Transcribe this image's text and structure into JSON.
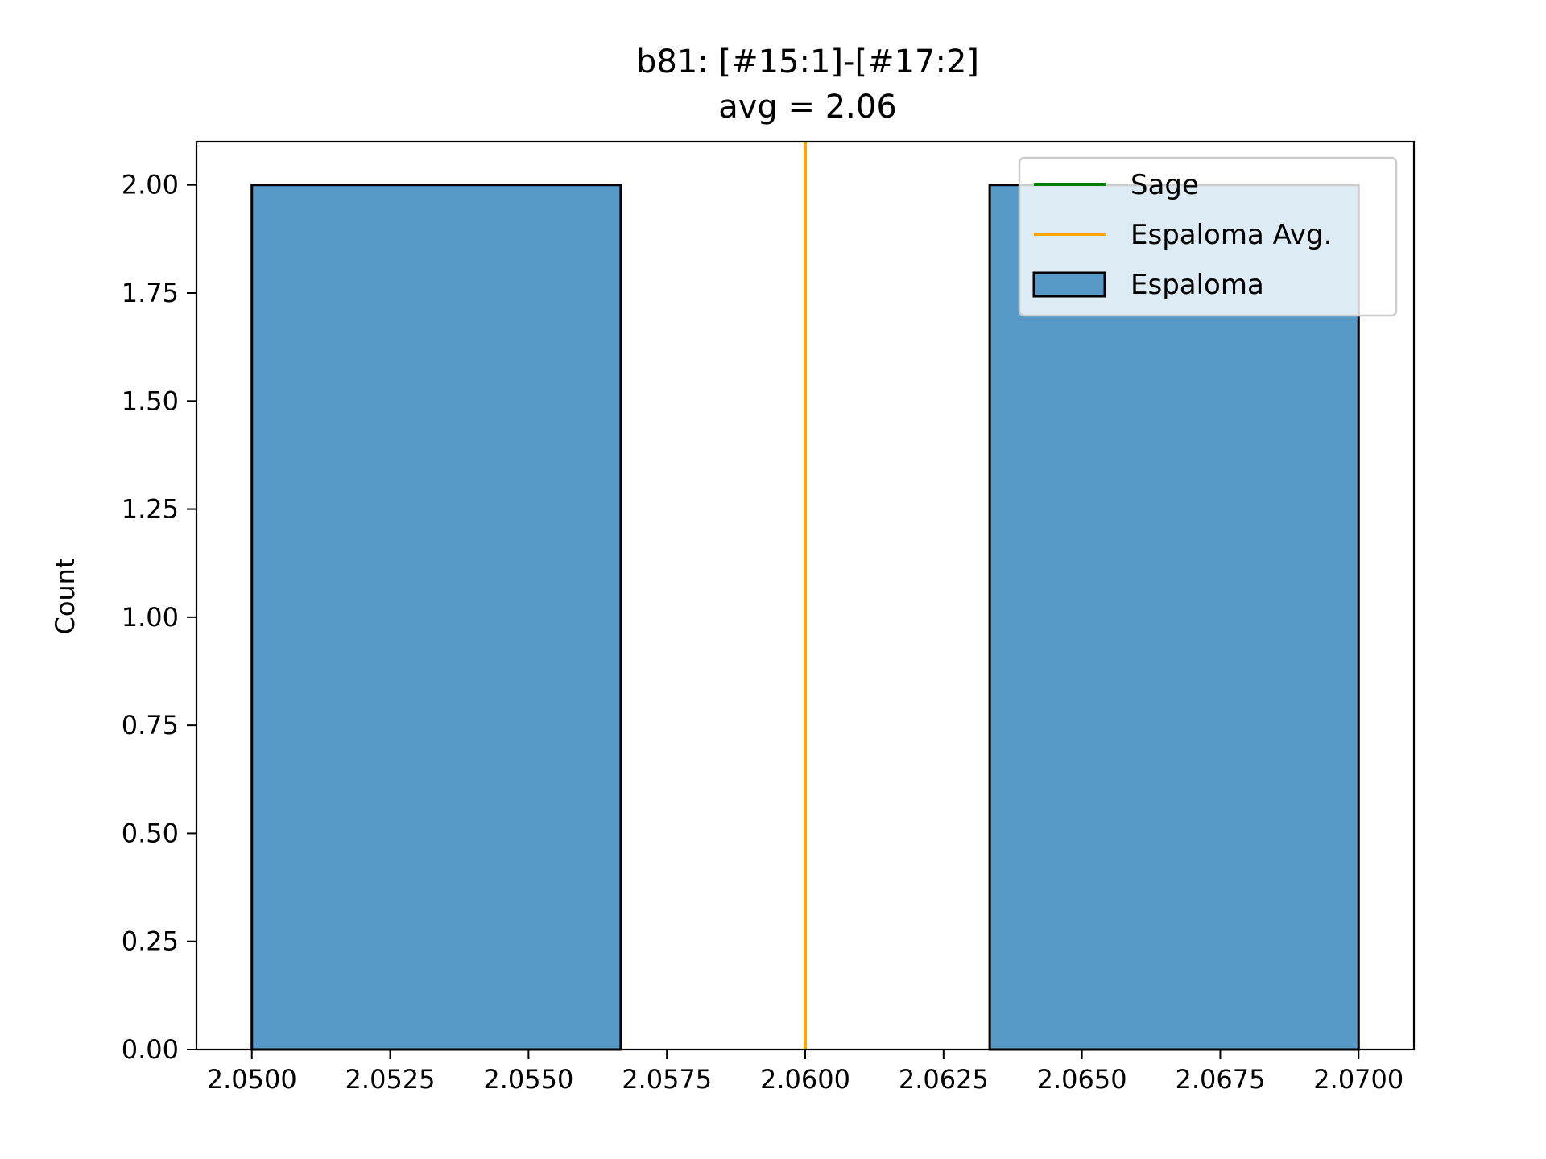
{
  "chart_data": {
    "type": "bar",
    "title": "b81: [#15:1]-[#17:2]",
    "subtitle": "avg = 2.06",
    "xlabel": "",
    "ylabel": "Count",
    "xlim": [
      2.049,
      2.071
    ],
    "ylim": [
      0,
      2.1
    ],
    "x_ticks": [
      2.05,
      2.0525,
      2.055,
      2.0575,
      2.06,
      2.0625,
      2.065,
      2.0675,
      2.07
    ],
    "x_tick_labels": [
      "2.0500",
      "2.0525",
      "2.0550",
      "2.0575",
      "2.0600",
      "2.0625",
      "2.0650",
      "2.0675",
      "2.0700"
    ],
    "y_ticks": [
      0,
      0.25,
      0.5,
      0.75,
      1.0,
      1.25,
      1.5,
      1.75,
      2.0
    ],
    "y_tick_labels": [
      "0.00",
      "0.25",
      "0.50",
      "0.75",
      "1.00",
      "1.25",
      "1.50",
      "1.75",
      "2.00"
    ],
    "bins": [
      {
        "start": 2.05,
        "end": 2.0566667,
        "count": 2
      },
      {
        "start": 2.0566667,
        "end": 2.0633333,
        "count": 0
      },
      {
        "start": 2.0633333,
        "end": 2.07,
        "count": 2
      }
    ],
    "vertical_lines": [
      {
        "name": "Espaloma Avg.",
        "x": 2.06,
        "color": "#ffa500"
      }
    ],
    "legend": {
      "position": "top-right",
      "entries": [
        {
          "label": "Sage",
          "kind": "line",
          "color": "#008000"
        },
        {
          "label": "Espaloma Avg.",
          "kind": "line",
          "color": "#ffa500"
        },
        {
          "label": "Espaloma",
          "kind": "patch",
          "color": "#5799c7"
        }
      ]
    },
    "colors": {
      "bar_fill": "#5799c7",
      "bar_edge": "#000000",
      "axes": "#000000"
    }
  }
}
